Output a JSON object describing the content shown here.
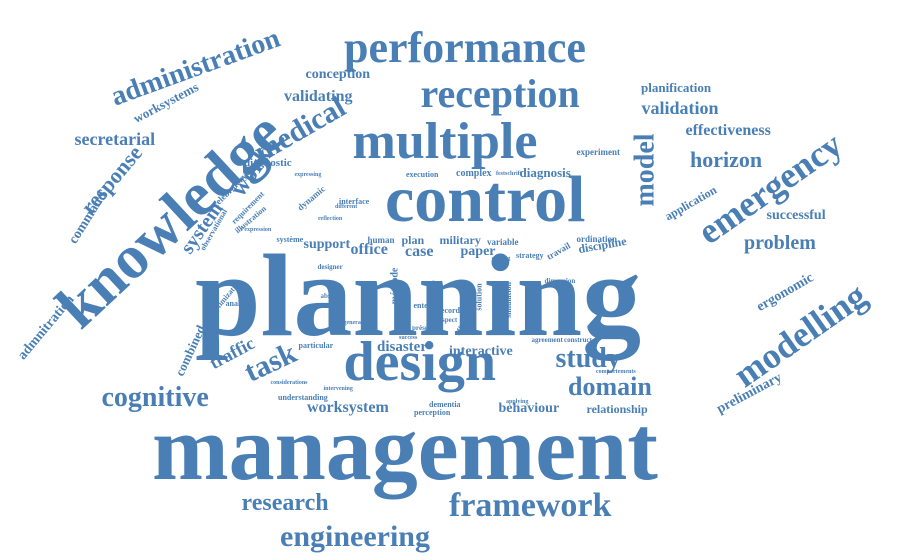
{
  "colors": {
    "word": "#4a7fb5",
    "background": "#ffffff"
  },
  "words": [
    "management",
    "planning",
    "control",
    "knowledge",
    "design",
    "multiple",
    "performance",
    "reception",
    "emergency",
    "modelling",
    "framework",
    "engineering",
    "research",
    "medical",
    "model",
    "administration",
    "cognitive",
    "task",
    "study",
    "domain",
    "problem",
    "horizon",
    "response",
    "work",
    "secretarial",
    "worksystem",
    "validation",
    "effectiveness",
    "validating",
    "conception",
    "worksystems",
    "planification",
    "successful",
    "ergonomic",
    "preliminary",
    "traffic",
    "system",
    "command",
    "admnitration",
    "combined",
    "disaster",
    "interactive",
    "behaviour",
    "relationship",
    "office",
    "case",
    "support",
    "plan",
    "military",
    "paper",
    "diagnosis",
    "diagnostic",
    "application",
    "discipline",
    "ordination",
    "experiment",
    "complex",
    "execution",
    "celebratory",
    "observational",
    "requirement",
    "illustration",
    "dynamic",
    "interface",
    "optimization",
    "analysis",
    "particular",
    "understanding",
    "dementia",
    "perception",
    "construct",
    "strategy",
    "travail",
    "simulation",
    "solution",
    "méthode",
    "variable",
    "human",
    "système",
    "report",
    "présent",
    "general",
    "aspect",
    "record",
    "applying",
    "agreement",
    "comportements",
    "expressing",
    "festschrift",
    "reflection",
    "abstract",
    "designer",
    "success",
    "intervening",
    "considerations",
    "dimension",
    "issue",
    "enters",
    "effectively",
    "l'expression",
    "different"
  ]
}
